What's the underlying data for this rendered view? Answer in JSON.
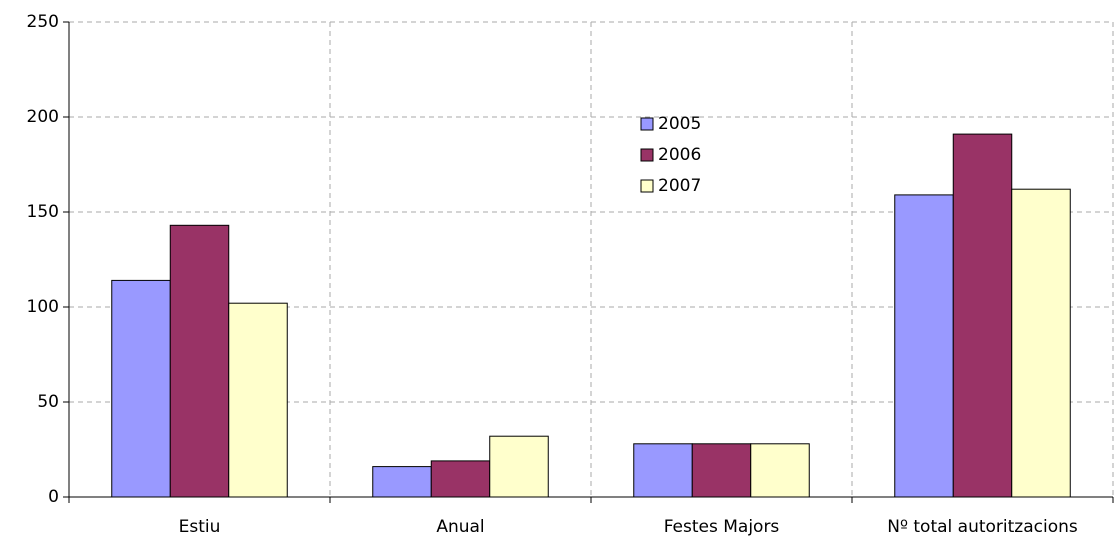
{
  "chart_data": {
    "type": "bar",
    "categories": [
      "Estiu",
      "Anual",
      "Festes Majors",
      "Nº total autoritzacions"
    ],
    "series": [
      {
        "name": "2005",
        "color": "#9999ff",
        "values": [
          114,
          16,
          28,
          159
        ]
      },
      {
        "name": "2006",
        "color": "#993366",
        "values": [
          143,
          19,
          28,
          191
        ]
      },
      {
        "name": "2007",
        "color": "#ffffcc",
        "values": [
          102,
          32,
          28,
          162
        ]
      }
    ],
    "ylim": [
      0,
      250
    ],
    "yticks": [
      0,
      50,
      100,
      150,
      200,
      250
    ],
    "grid": true,
    "legend": "center"
  }
}
